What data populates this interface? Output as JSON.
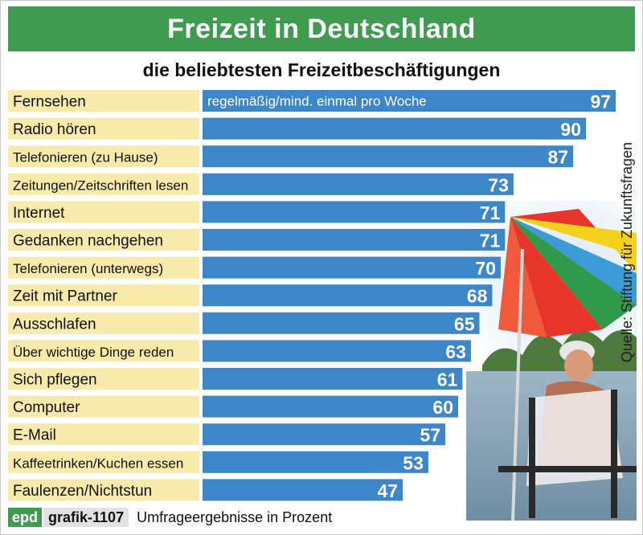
{
  "header": {
    "title": "Freizeit in Deutschland",
    "subtitle": "die beliebtesten Freizeitbeschäftigungen"
  },
  "source_text": "Quelle: Stiftung für Zukunftsfragen",
  "footer": {
    "brand": "epd",
    "code": "grafik-1107",
    "note": "Umfrageergebnisse in Prozent"
  },
  "colors": {
    "title_bg": "#3f9b4f",
    "label_bg": "#f7eaaa",
    "bar": "#3d86c8",
    "value_text": "#ffffff"
  },
  "chart_data": {
    "type": "bar",
    "orientation": "horizontal",
    "series": [
      {
        "name": "regelmäßig/mind. einmal pro Woche",
        "values": [
          97,
          90,
          87,
          73,
          71,
          71,
          70,
          68,
          65,
          63,
          61,
          60,
          57,
          53,
          47
        ]
      }
    ],
    "categories": [
      "Fernsehen",
      "Radio hören",
      "Telefonieren (zu Hause)",
      "Zeitungen/Zeitschriften lesen",
      "Internet",
      "Gedanken nachgehen",
      "Telefonieren (unterwegs)",
      "Zeit mit Partner",
      "Ausschlafen",
      "Über wichtige Dinge reden",
      "Sich pflegen",
      "Computer",
      "E-Mail",
      "Kaffeetrinken/Kuchen essen",
      "Faulenzen/Nichtstun"
    ],
    "values": [
      97,
      90,
      87,
      73,
      71,
      71,
      70,
      68,
      65,
      63,
      61,
      60,
      57,
      53,
      47
    ],
    "xlim": [
      0,
      100
    ],
    "grid": false,
    "legend": "inside first bar"
  }
}
